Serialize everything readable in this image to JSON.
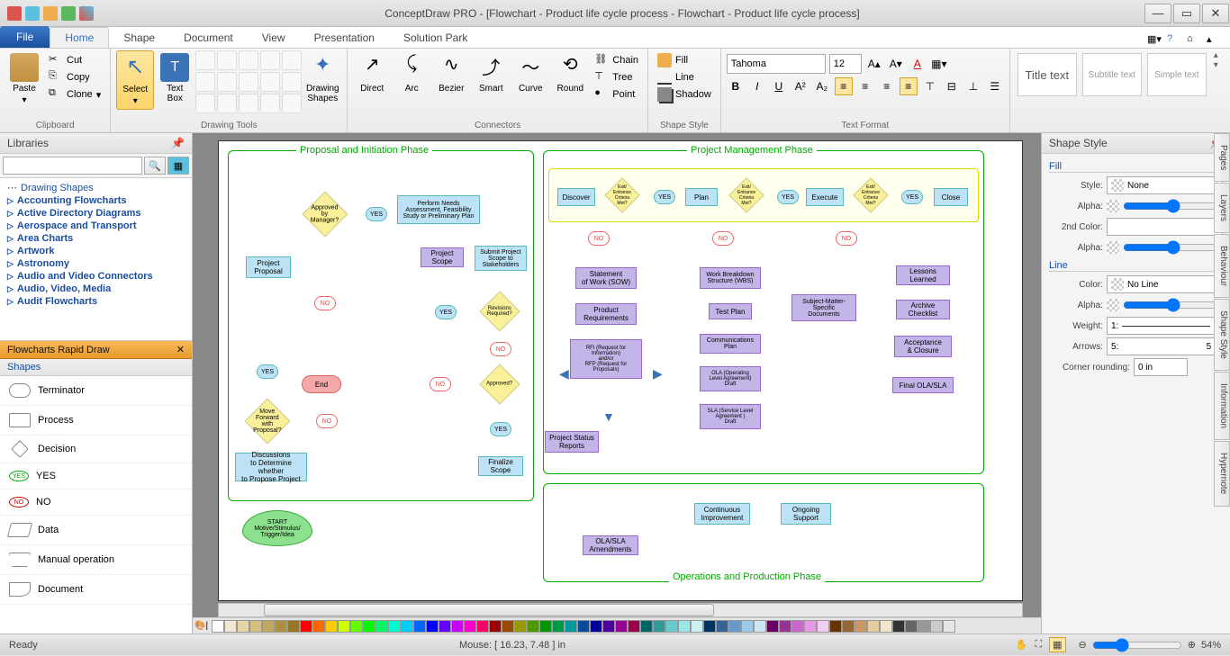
{
  "title": "ConceptDraw PRO - [Flowchart - Product life cycle process - Flowchart - Product life cycle process]",
  "tabs": {
    "file": "File",
    "home": "Home",
    "shape": "Shape",
    "document": "Document",
    "view": "View",
    "presentation": "Presentation",
    "solution": "Solution Park"
  },
  "ribbon": {
    "clipboard": {
      "label": "Clipboard",
      "paste": "Paste",
      "cut": "Cut",
      "copy": "Copy",
      "clone": "Clone"
    },
    "drawing": {
      "label": "Drawing Tools",
      "select": "Select",
      "textbox": "Text\nBox",
      "shapes": "Drawing\nShapes"
    },
    "connectors": {
      "label": "Connectors",
      "direct": "Direct",
      "arc": "Arc",
      "bezier": "Bezier",
      "smart": "Smart",
      "curve": "Curve",
      "round": "Round",
      "chain": "Chain",
      "tree": "Tree",
      "point": "Point"
    },
    "shapestyle": {
      "label": "Shape Style",
      "fill": "Fill",
      "line": "Line",
      "shadow": "Shadow"
    },
    "textformat": {
      "label": "Text Format",
      "font": "Tahoma",
      "size": "12"
    },
    "styles": {
      "title": "Title text",
      "subtitle": "Subtitle text",
      "simple": "Simple text"
    }
  },
  "libpane": {
    "header": "Libraries",
    "items": [
      "Drawing Shapes",
      "Accounting Flowcharts",
      "Active Directory Diagrams",
      "Aerospace and Transport",
      "Area Charts",
      "Artwork",
      "Astronomy",
      "Audio and Video Connectors",
      "Audio, Video, Media",
      "Audit Flowcharts"
    ],
    "rapid": "Flowcharts Rapid Draw",
    "shapesHdr": "Shapes",
    "shapes": [
      "Terminator",
      "Process",
      "Decision",
      "YES",
      "NO",
      "Data",
      "Manual operation",
      "Document"
    ]
  },
  "flowchart": {
    "phase1": "Proposal and Initiation Phase",
    "phase2": "Project Management Phase",
    "phase3": "Operations and Production Phase",
    "nodes": {
      "start": "START\nMotive/Stimulus/\nTrigger/Idea",
      "discuss": "Discussions\nto Determine whether\nto Propose Project",
      "moveFwd": "Move Forward\nwith Proposal?",
      "proposal": "Project\nProposal",
      "approvedMgr": "Approved by\nManager?",
      "needs": "Perform Needs\nAssessment, Feasibility\nStudy or Preliminary Plan",
      "scope": "Project\nScope",
      "submit": "Submit Project\nScope to\nStakeholders",
      "revisions": "Revisions\nRequired?",
      "end": "End",
      "approved": "Approved?",
      "finalize": "Finalize\nScope",
      "discover": "Discover",
      "plan": "Plan",
      "execute": "Execute",
      "close": "Close",
      "exitCrit": "Exit/\nEntrance\nCriteria\nMet?",
      "sow": "Statement\nof Work (SOW)",
      "prodReq": "Product\nRequirements",
      "rfi": "RFI (Request for\nInformation)\nand/or\nRFP (Request for\nProposals)",
      "status": "Project Status\nReports",
      "wbs": "Work Breakdown\nStructure (WBS)",
      "testplan": "Test Plan",
      "commplan": "Communications\nPlan",
      "ola": "OLA (Operating\nLevel Agreement)\nDraft",
      "sla": "SLA (Service Level\nAgreement )\nDraft",
      "smd": "Subject-Matter-\nSpecific\nDocuments",
      "lessons": "Lessons\nLearned",
      "archive": "Archive\nChecklist",
      "accept": "Acceptance\n& Closure",
      "finalSla": "Final OLA/SLA",
      "contimp": "Continuous\nImprovement",
      "ongoing": "Ongoing\nSupport",
      "amend": "OLA/SLA\nAmendments",
      "yes": "YES",
      "no": "NO"
    }
  },
  "stylepane": {
    "header": "Shape Style",
    "fill": "Fill",
    "line": "Line",
    "style": "Style:",
    "styleVal": "None",
    "alpha": "Alpha:",
    "color2": "2nd Color:",
    "color": "Color:",
    "colorVal": "No Line",
    "weight": "Weight:",
    "weightVal": "1:",
    "arrows": "Arrows:",
    "arrowsVal": "5:",
    "rounding": "Corner rounding:",
    "roundingVal": "0 in"
  },
  "vtabs": [
    "Pages",
    "Layers",
    "Behaviour",
    "Shape Style",
    "Information",
    "Hypernote"
  ],
  "status": {
    "ready": "Ready",
    "mouse": "Mouse: [ 16.23, 7.48 ] in",
    "zoom": "54%"
  },
  "colorbar": [
    "#ffffff",
    "#f5e6d3",
    "#e8d4a0",
    "#d4c080",
    "#c0a860",
    "#ac9040",
    "#987820",
    "#ff0000",
    "#ff6600",
    "#ffcc00",
    "#ccff00",
    "#66ff00",
    "#00ff00",
    "#00ff66",
    "#00ffcc",
    "#00ccff",
    "#0066ff",
    "#0000ff",
    "#6600ff",
    "#cc00ff",
    "#ff00cc",
    "#ff0066",
    "#990000",
    "#994c00",
    "#999900",
    "#4c9900",
    "#009900",
    "#00994c",
    "#009999",
    "#004c99",
    "#000099",
    "#4c0099",
    "#990099",
    "#99004c",
    "#006666",
    "#339999",
    "#66cccc",
    "#99e6e6",
    "#ccf2f2",
    "#003366",
    "#336699",
    "#6699cc",
    "#99cce6",
    "#cce6f2",
    "#660066",
    "#993399",
    "#cc66cc",
    "#e699e6",
    "#f2ccf2",
    "#663300",
    "#996633",
    "#cc9966",
    "#e6cc99",
    "#f2e6cc",
    "#333333",
    "#666666",
    "#999999",
    "#cccccc",
    "#e6e6e6"
  ]
}
